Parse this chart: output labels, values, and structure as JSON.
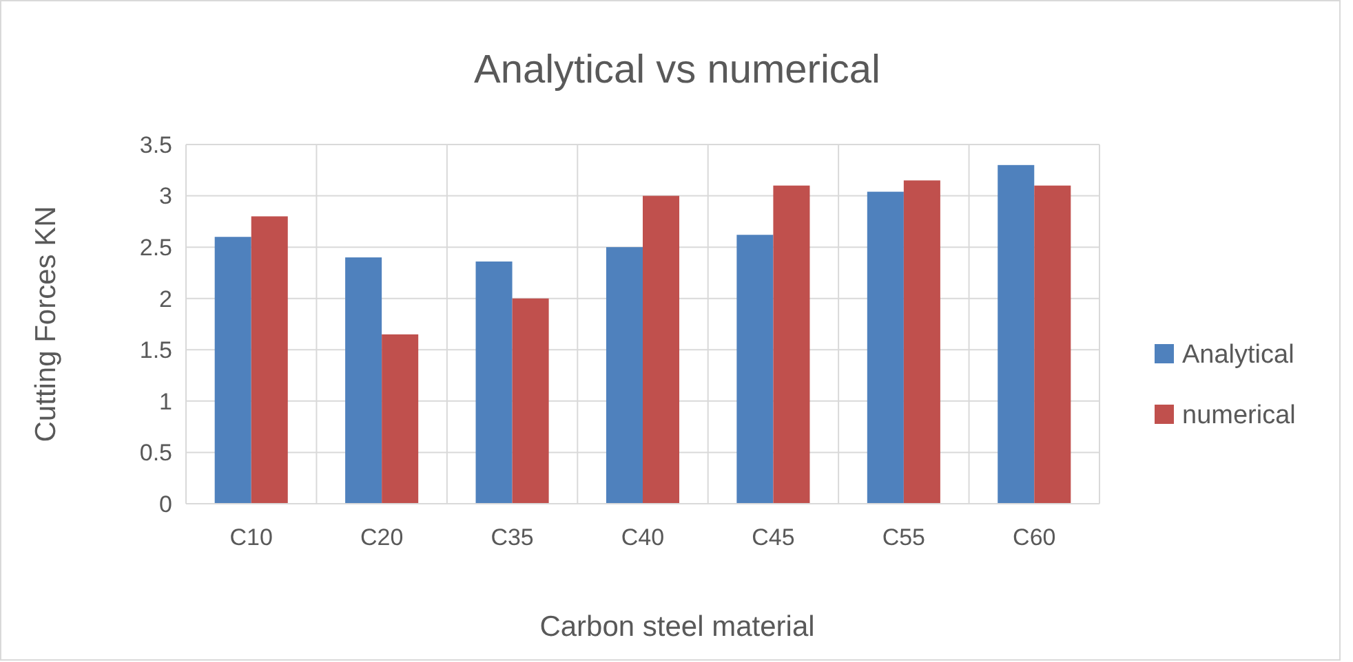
{
  "chart_data": {
    "type": "bar",
    "title": "Analytical vs numerical",
    "xlabel": "Carbon steel material",
    "ylabel": "Cutting Forces KN",
    "categories": [
      "C10",
      "C20",
      "C35",
      "C40",
      "C45",
      "C55",
      "C60"
    ],
    "series": [
      {
        "name": "Analytical",
        "color": "#4f81bd",
        "values": [
          2.6,
          2.4,
          2.36,
          2.5,
          2.62,
          3.04,
          3.3
        ]
      },
      {
        "name": "numerical",
        "color": "#c0504d",
        "values": [
          2.8,
          1.65,
          2.0,
          3.0,
          3.1,
          3.15,
          3.1
        ]
      }
    ],
    "ylim": [
      0,
      3.5
    ],
    "yticks": [
      0,
      0.5,
      1,
      {
        "value": 1.5,
        "label": "1.5"
      },
      2,
      {
        "value": 2.5,
        "label": "2.5"
      },
      3,
      {
        "value": 3.5,
        "label": "3.5"
      }
    ],
    "grid": true,
    "legend": "right"
  }
}
